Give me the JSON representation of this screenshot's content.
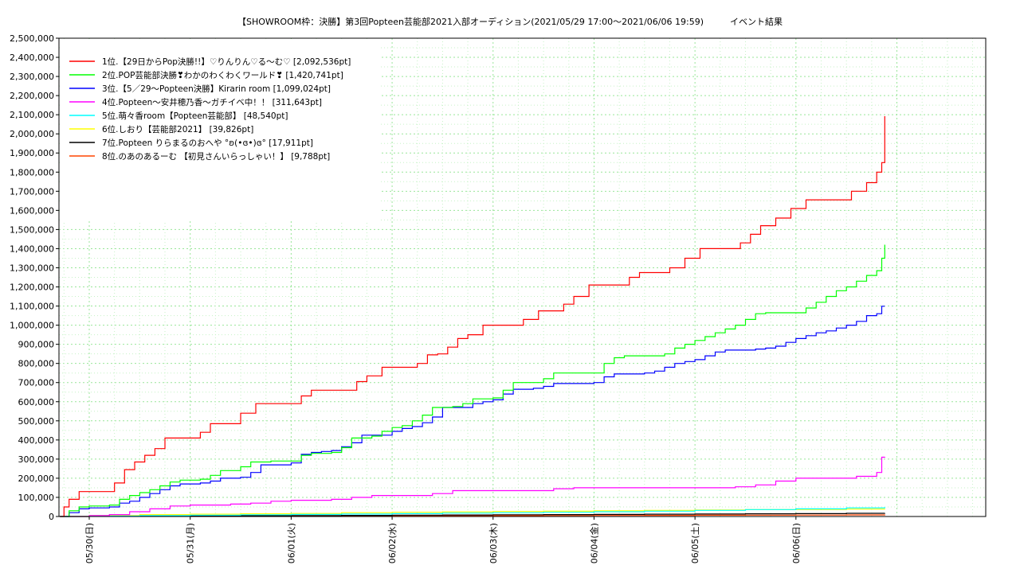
{
  "chart_data": {
    "type": "line",
    "title": "【SHOWROOM枠：決勝】第3回Popteen芸能部2021入部オーディション(2021/05/29 17:00～2021/06/06 19:59)　　　イベント結果",
    "xlabel": "",
    "ylabel": "",
    "ylim": [
      0,
      2500000
    ],
    "y_ticks": [
      0,
      100000,
      200000,
      300000,
      400000,
      500000,
      600000,
      700000,
      800000,
      900000,
      1000000,
      1100000,
      1200000,
      1300000,
      1400000,
      1500000,
      1600000,
      1700000,
      1800000,
      1900000,
      2000000,
      2100000,
      2200000,
      2300000,
      2400000,
      2500000
    ],
    "y_tick_labels": [
      "0",
      "100,000",
      "200,000",
      "300,000",
      "400,000",
      "500,000",
      "600,000",
      "700,000",
      "800,000",
      "900,000",
      "1,000,000",
      "1,100,000",
      "1,200,000",
      "1,300,000",
      "1,400,000",
      "1,500,000",
      "1,600,000",
      "1,700,000",
      "1,800,000",
      "1,900,000",
      "2,000,000",
      "2,100,000",
      "2,200,000",
      "2,300,000",
      "2,400,000",
      "2,500,000"
    ],
    "x_range_days": [
      29.7,
      38.88
    ],
    "x_ticks": [
      30,
      31,
      32,
      33,
      34,
      35,
      36,
      37
    ],
    "x_tick_labels": [
      "05/30(日)",
      "05/31(月)",
      "06/01(火)",
      "06/02(水)",
      "06/03(木)",
      "06/04(金)",
      "06/05(土)",
      "06/06(日)"
    ],
    "grid": true,
    "legend_position": "top-left",
    "series": [
      {
        "name": "1位.【29日からPop決勝!!】♡りんりん♡る〜む♡ [2,092,536pt]",
        "color": "#ff0000",
        "x": [
          29.71,
          29.75,
          29.8,
          29.9,
          30.0,
          30.1,
          30.25,
          30.35,
          30.45,
          30.55,
          30.65,
          30.75,
          30.9,
          31.0,
          31.1,
          31.2,
          31.3,
          31.4,
          31.5,
          31.65,
          31.8,
          31.95,
          32.1,
          32.2,
          32.35,
          32.5,
          32.65,
          32.75,
          32.9,
          33.0,
          33.1,
          33.25,
          33.35,
          33.45,
          33.55,
          33.65,
          33.75,
          33.9,
          34.05,
          34.2,
          34.3,
          34.45,
          34.6,
          34.7,
          34.8,
          34.95,
          35.1,
          35.25,
          35.35,
          35.45,
          35.6,
          35.75,
          35.9,
          36.05,
          36.15,
          36.3,
          36.45,
          36.55,
          36.65,
          36.8,
          36.95,
          37.1,
          37.25,
          37.4,
          37.55,
          37.7,
          37.8,
          37.85,
          37.88
        ],
        "y": [
          0,
          50000,
          90000,
          130000,
          130000,
          130000,
          175000,
          245000,
          285000,
          320000,
          355000,
          410000,
          410000,
          410000,
          440000,
          485000,
          485000,
          485000,
          540000,
          590000,
          590000,
          590000,
          630000,
          660000,
          660000,
          660000,
          705000,
          735000,
          780000,
          780000,
          780000,
          800000,
          845000,
          850000,
          885000,
          930000,
          950000,
          1000000,
          1000000,
          1000000,
          1030000,
          1075000,
          1075000,
          1110000,
          1150000,
          1210000,
          1210000,
          1210000,
          1250000,
          1275000,
          1275000,
          1300000,
          1350000,
          1400000,
          1400000,
          1400000,
          1430000,
          1475000,
          1520000,
          1560000,
          1610000,
          1655000,
          1655000,
          1655000,
          1700000,
          1745000,
          1800000,
          1850000,
          2092536
        ]
      },
      {
        "name": "2位.POP芸能部決勝❣わかのわくわくワールド❣ [1,420,741pt]",
        "color": "#00ff00",
        "x": [
          29.71,
          29.8,
          29.9,
          30.0,
          30.1,
          30.2,
          30.3,
          30.4,
          30.5,
          30.6,
          30.7,
          30.8,
          30.9,
          31.0,
          31.1,
          31.2,
          31.3,
          31.4,
          31.5,
          31.6,
          31.7,
          31.8,
          31.9,
          32.0,
          32.1,
          32.2,
          32.3,
          32.4,
          32.5,
          32.6,
          32.7,
          32.8,
          32.9,
          33.0,
          33.1,
          33.2,
          33.3,
          33.4,
          33.5,
          33.6,
          33.7,
          33.8,
          33.9,
          34.0,
          34.1,
          34.2,
          34.3,
          34.4,
          34.5,
          34.6,
          34.7,
          34.8,
          34.9,
          35.0,
          35.1,
          35.2,
          35.3,
          35.4,
          35.5,
          35.6,
          35.7,
          35.8,
          35.9,
          36.0,
          36.1,
          36.2,
          36.3,
          36.4,
          36.5,
          36.6,
          36.7,
          36.8,
          36.9,
          37.0,
          37.1,
          37.2,
          37.3,
          37.4,
          37.5,
          37.6,
          37.7,
          37.8,
          37.85,
          37.88
        ],
        "y": [
          0,
          30000,
          50000,
          55000,
          55000,
          60000,
          90000,
          110000,
          125000,
          140000,
          160000,
          180000,
          190000,
          190000,
          195000,
          215000,
          240000,
          240000,
          260000,
          285000,
          285000,
          290000,
          290000,
          290000,
          320000,
          330000,
          330000,
          335000,
          360000,
          410000,
          410000,
          420000,
          445000,
          465000,
          475000,
          500000,
          530000,
          570000,
          570000,
          575000,
          590000,
          615000,
          615000,
          620000,
          660000,
          700000,
          700000,
          700000,
          720000,
          750000,
          750000,
          750000,
          750000,
          750000,
          800000,
          830000,
          840000,
          840000,
          840000,
          840000,
          850000,
          880000,
          900000,
          920000,
          940000,
          960000,
          980000,
          1000000,
          1030000,
          1060000,
          1065000,
          1065000,
          1065000,
          1065000,
          1090000,
          1120000,
          1150000,
          1180000,
          1200000,
          1230000,
          1260000,
          1285000,
          1350000,
          1420741
        ]
      },
      {
        "name": "3位.【5／29〜Popteen決勝】Kirarin room [1,099,024pt]",
        "color": "#0000ff",
        "x": [
          29.71,
          29.8,
          29.9,
          30.0,
          30.1,
          30.2,
          30.3,
          30.4,
          30.5,
          30.6,
          30.7,
          30.8,
          30.9,
          31.0,
          31.1,
          31.2,
          31.3,
          31.4,
          31.5,
          31.6,
          31.7,
          31.8,
          31.9,
          32.0,
          32.1,
          32.2,
          32.3,
          32.4,
          32.5,
          32.6,
          32.7,
          32.8,
          32.9,
          33.0,
          33.1,
          33.2,
          33.3,
          33.4,
          33.5,
          33.6,
          33.7,
          33.8,
          33.9,
          34.0,
          34.1,
          34.2,
          34.3,
          34.4,
          34.5,
          34.6,
          34.7,
          34.8,
          34.9,
          35.0,
          35.1,
          35.2,
          35.3,
          35.4,
          35.5,
          35.6,
          35.7,
          35.8,
          35.9,
          36.0,
          36.1,
          36.2,
          36.3,
          36.4,
          36.5,
          36.6,
          36.7,
          36.8,
          36.9,
          37.0,
          37.1,
          37.2,
          37.3,
          37.4,
          37.5,
          37.6,
          37.7,
          37.8,
          37.85,
          37.88
        ],
        "y": [
          0,
          20000,
          40000,
          45000,
          45000,
          50000,
          70000,
          80000,
          100000,
          120000,
          140000,
          160000,
          170000,
          170000,
          175000,
          185000,
          200000,
          200000,
          205000,
          230000,
          270000,
          270000,
          270000,
          280000,
          325000,
          335000,
          340000,
          345000,
          365000,
          385000,
          425000,
          425000,
          425000,
          445000,
          460000,
          470000,
          490000,
          520000,
          570000,
          570000,
          570000,
          590000,
          600000,
          610000,
          640000,
          665000,
          665000,
          670000,
          680000,
          695000,
          695000,
          695000,
          695000,
          700000,
          730000,
          745000,
          745000,
          745000,
          750000,
          760000,
          780000,
          800000,
          810000,
          820000,
          840000,
          860000,
          870000,
          870000,
          870000,
          875000,
          880000,
          890000,
          910000,
          930000,
          945000,
          960000,
          970000,
          985000,
          1000000,
          1020000,
          1050000,
          1060000,
          1099024,
          1099024
        ]
      },
      {
        "name": "4位.Popteen〜安井穂乃香〜ガチイベ中！！ [311,643pt]",
        "color": "#ff00ff",
        "x": [
          29.71,
          30.0,
          30.2,
          30.4,
          30.6,
          30.8,
          31.0,
          31.2,
          31.4,
          31.6,
          31.8,
          32.0,
          32.2,
          32.4,
          32.6,
          32.8,
          33.0,
          33.2,
          33.4,
          33.6,
          33.8,
          34.0,
          34.2,
          34.4,
          34.6,
          34.8,
          35.0,
          35.2,
          35.4,
          35.6,
          35.8,
          36.0,
          36.2,
          36.4,
          36.6,
          36.8,
          37.0,
          37.2,
          37.4,
          37.6,
          37.8,
          37.85,
          37.88
        ],
        "y": [
          0,
          5000,
          10000,
          25000,
          40000,
          55000,
          60000,
          60000,
          65000,
          70000,
          80000,
          85000,
          85000,
          90000,
          100000,
          110000,
          110000,
          110000,
          120000,
          135000,
          135000,
          135000,
          135000,
          135000,
          145000,
          150000,
          150000,
          150000,
          150000,
          150000,
          150000,
          150000,
          150000,
          155000,
          165000,
          185000,
          200000,
          200000,
          200000,
          210000,
          230000,
          310000,
          311643
        ]
      },
      {
        "name": "5位.萌々香room【Popteen芸能部】 [48,540pt]",
        "color": "#00ffff",
        "x": [
          29.71,
          30.0,
          30.5,
          31.0,
          31.5,
          32.0,
          32.5,
          33.0,
          33.5,
          34.0,
          34.5,
          35.0,
          35.5,
          36.0,
          36.5,
          37.0,
          37.5,
          37.88
        ],
        "y": [
          0,
          2000,
          5000,
          7000,
          9000,
          11000,
          13000,
          15000,
          18000,
          20000,
          22000,
          25000,
          28000,
          32000,
          36000,
          40000,
          45000,
          48540
        ]
      },
      {
        "name": "6位.しおり【芸能部2021】 [39,826pt]",
        "color": "#ffff00",
        "x": [
          29.71,
          30.0,
          30.5,
          31.0,
          31.5,
          32.0,
          32.5,
          33.0,
          33.5,
          34.0,
          34.5,
          35.0,
          35.5,
          36.0,
          36.5,
          37.0,
          37.5,
          37.88
        ],
        "y": [
          0,
          5000,
          10000,
          12000,
          14000,
          16000,
          20000,
          22000,
          24000,
          26000,
          28000,
          30000,
          32000,
          34000,
          36000,
          37000,
          38500,
          39826
        ]
      },
      {
        "name": "7位.Popteen りらまるのおへや °ʚ(•ɞ•)ɞ° [17,911pt]",
        "color": "#000000",
        "x": [
          29.71,
          30.0,
          30.5,
          31.0,
          31.5,
          32.0,
          32.5,
          33.0,
          33.5,
          34.0,
          34.5,
          35.0,
          35.5,
          36.0,
          36.5,
          37.0,
          37.5,
          37.88
        ],
        "y": [
          0,
          1000,
          2000,
          3000,
          4000,
          5000,
          6000,
          7000,
          8000,
          9000,
          10000,
          11000,
          12000,
          13000,
          14000,
          15000,
          16500,
          17911
        ]
      },
      {
        "name": "8位.のあのあるーむ 【初見さんいらっしゃい！】 [9,788pt]",
        "color": "#ff4500",
        "x": [
          29.71,
          30.0,
          30.5,
          31.0,
          31.5,
          32.0,
          32.5,
          33.0,
          33.5,
          34.0,
          34.5,
          35.0,
          35.5,
          36.0,
          36.5,
          37.0,
          37.5,
          37.88
        ],
        "y": [
          0,
          500,
          1000,
          1500,
          2000,
          2500,
          3000,
          3500,
          4000,
          4500,
          5000,
          5500,
          6000,
          6500,
          7000,
          7500,
          8500,
          9788
        ]
      }
    ]
  }
}
